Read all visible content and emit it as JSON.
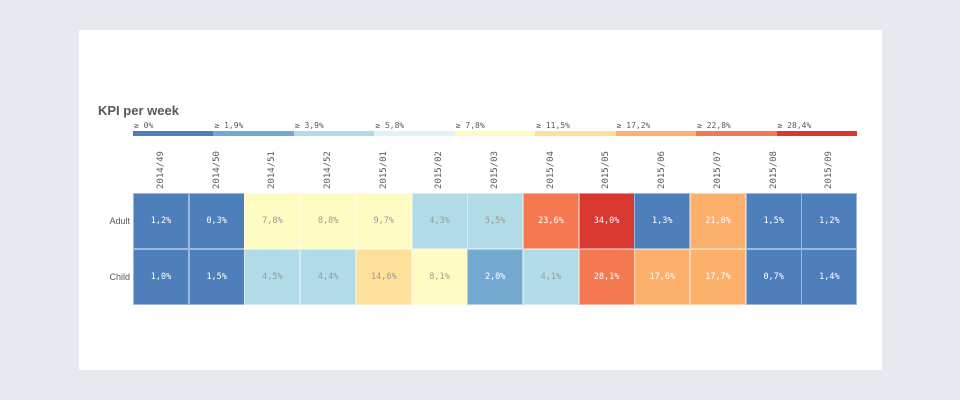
{
  "chart_data": {
    "type": "heatmap",
    "title": "KPI per week",
    "columns": [
      "2014/49",
      "2014/50",
      "2014/51",
      "2014/52",
      "2015/01",
      "2015/02",
      "2015/03",
      "2015/04",
      "2015/05",
      "2015/06",
      "2015/07",
      "2015/08",
      "2015/09"
    ],
    "rows": [
      "Adult",
      "Child"
    ],
    "values": [
      [
        1.2,
        0.3,
        7.8,
        8.8,
        9.7,
        4.3,
        5.5,
        23.6,
        34.0,
        1.3,
        21.8,
        1.5,
        1.2
      ],
      [
        1.0,
        1.5,
        4.5,
        4.4,
        14.6,
        8.1,
        2.0,
        4.1,
        28.1,
        17.6,
        17.7,
        0.7,
        1.4
      ]
    ],
    "labels": [
      [
        "1,2%",
        "0,3%",
        "7,8%",
        "8,8%",
        "9,7%",
        "4,3%",
        "5,5%",
        "23,6%",
        "34,0%",
        "1,3%",
        "21,8%",
        "1,5%",
        "1,2%"
      ],
      [
        "1,0%",
        "1,5%",
        "4,5%",
        "4,4%",
        "14,6%",
        "8,1%",
        "2,0%",
        "4,1%",
        "28,1%",
        "17,6%",
        "17,7%",
        "0,7%",
        "1,4%"
      ]
    ],
    "legend": {
      "placement": "top",
      "bins": [
        {
          "label": "≥ 0%",
          "min": 0,
          "color": "#4e7fbb"
        },
        {
          "label": "≥ 1,9%",
          "min": 1.9,
          "color": "#74aad2"
        },
        {
          "label": "≥ 3,9%",
          "min": 3.9,
          "color": "#b2dbe8"
        },
        {
          "label": "≥ 5,8%",
          "min": 5.8,
          "color": "#e1f2f7"
        },
        {
          "label": "≥ 7,8%",
          "min": 7.8,
          "color": "#fefcc3"
        },
        {
          "label": "≥ 11,5%",
          "min": 11.5,
          "color": "#fde19a"
        },
        {
          "label": "≥ 17,2%",
          "min": 17.2,
          "color": "#fdb06b"
        },
        {
          "label": "≥ 22,8%",
          "min": 22.8,
          "color": "#f47950"
        },
        {
          "label": "≥ 28,4%",
          "min": 28.4,
          "color": "#d8382f"
        }
      ]
    }
  }
}
